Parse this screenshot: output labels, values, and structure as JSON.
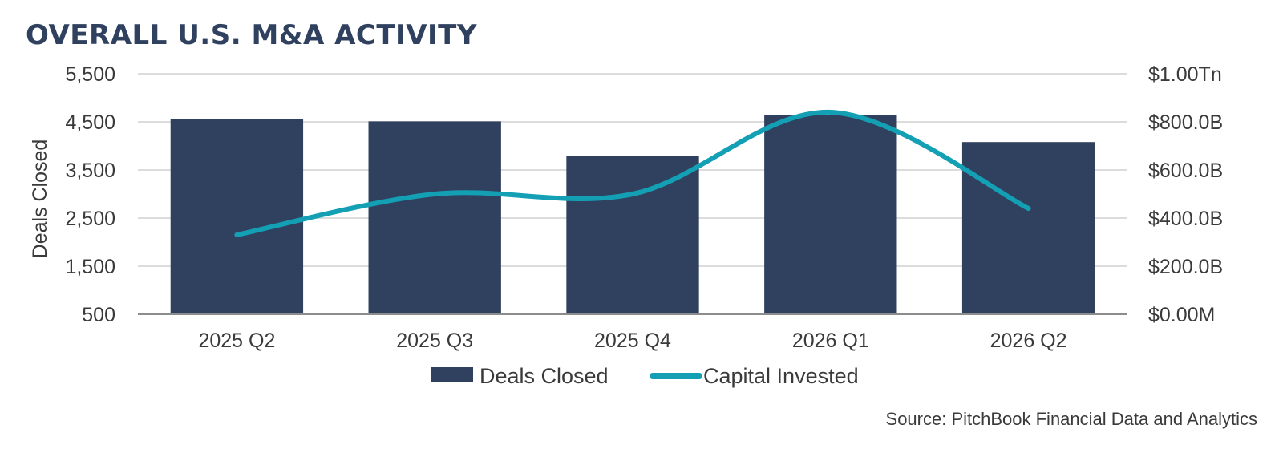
{
  "chart_data": {
    "type": "bar",
    "title": "OVERALL U.S. M&A ACTIVITY",
    "categories": [
      "2025 Q2",
      "2025 Q3",
      "2025 Q4",
      "2026 Q1",
      "2026 Q2"
    ],
    "series": [
      {
        "name": "Deals Closed",
        "type": "bar",
        "axis": "left",
        "color": "#30415f",
        "values": [
          4550,
          4510,
          3790,
          4650,
          4080
        ]
      },
      {
        "name": "Capital Invested",
        "type": "line",
        "axis": "right",
        "color": "#13a0b5",
        "smooth": true,
        "values": [
          330000000000,
          500000000000,
          500000000000,
          840000000000,
          440000000000
        ]
      }
    ],
    "ylabel": "Deals Closed",
    "ylim": [
      500,
      5500
    ],
    "yticks": [
      "5,500",
      "4,500",
      "3,500",
      "2,500",
      "1,500",
      "500"
    ],
    "y2lim": [
      0,
      1000000000000
    ],
    "y2ticks": [
      "$1.00Tn",
      "$800.0B",
      "$600.0B",
      "$400.0B",
      "$200.0B",
      "$0.00M"
    ],
    "grid": true,
    "legend": "bottom-center"
  },
  "source": "Source: PitchBook Financial Data and Analytics"
}
